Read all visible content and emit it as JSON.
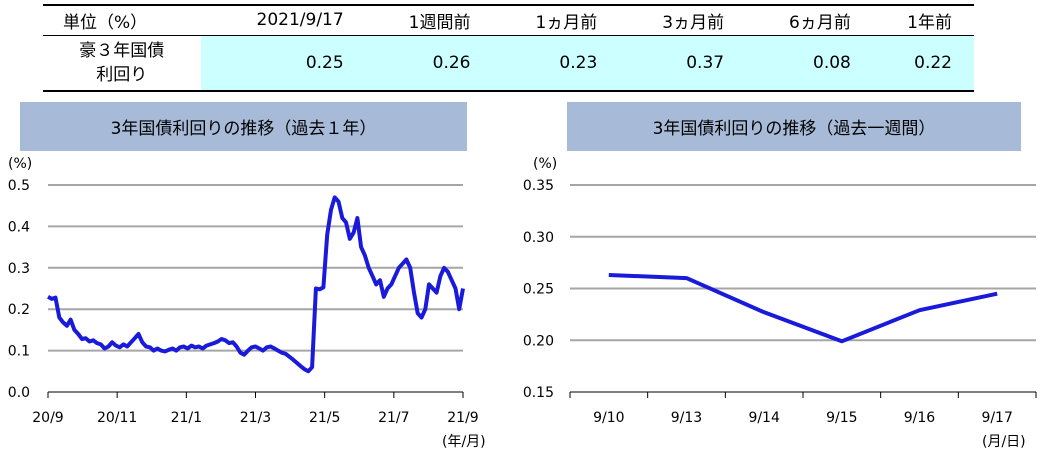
{
  "table": {
    "headers": [
      "単位（%）",
      "2021/9/17",
      "1週間前",
      "1ヵ月前",
      "3ヵ月前",
      "6ヵ月前",
      "1年前"
    ],
    "row_label_line1": "豪３年国債",
    "row_label_line2": "利回り",
    "values": [
      "0.25",
      "0.26",
      "0.23",
      "0.37",
      "0.08",
      "0.22"
    ]
  },
  "chart_data": [
    {
      "type": "line",
      "title": "3年国債利回りの推移（過去１年）",
      "unit_label": "(%)",
      "x_unit_label": "(年/月)",
      "ylim": [
        0,
        0.5
      ],
      "yticks": [
        "0.0",
        "0.1",
        "0.2",
        "0.3",
        "0.4",
        "0.5"
      ],
      "xticks": [
        "20/9",
        "20/11",
        "21/1",
        "21/3",
        "21/5",
        "21/7",
        "21/9"
      ],
      "grid": true,
      "series": [
        {
          "color": "#1a1adb",
          "values": [
            0.23,
            0.225,
            0.228,
            0.18,
            0.168,
            0.16,
            0.175,
            0.15,
            0.14,
            0.128,
            0.13,
            0.122,
            0.125,
            0.118,
            0.115,
            0.105,
            0.11,
            0.12,
            0.112,
            0.108,
            0.115,
            0.11,
            0.12,
            0.13,
            0.14,
            0.12,
            0.11,
            0.108,
            0.1,
            0.105,
            0.1,
            0.098,
            0.102,
            0.105,
            0.1,
            0.108,
            0.11,
            0.105,
            0.112,
            0.108,
            0.11,
            0.105,
            0.112,
            0.115,
            0.118,
            0.122,
            0.128,
            0.125,
            0.118,
            0.12,
            0.11,
            0.095,
            0.09,
            0.1,
            0.108,
            0.11,
            0.105,
            0.1,
            0.108,
            0.11,
            0.105,
            0.1,
            0.095,
            0.092,
            0.085,
            0.078,
            0.07,
            0.062,
            0.055,
            0.05,
            0.06,
            0.25,
            0.248,
            0.253,
            0.38,
            0.44,
            0.47,
            0.46,
            0.42,
            0.41,
            0.37,
            0.385,
            0.42,
            0.35,
            0.33,
            0.3,
            0.28,
            0.26,
            0.27,
            0.23,
            0.25,
            0.26,
            0.28,
            0.3,
            0.31,
            0.32,
            0.3,
            0.24,
            0.19,
            0.18,
            0.2,
            0.26,
            0.25,
            0.24,
            0.28,
            0.3,
            0.29,
            0.27,
            0.25,
            0.2,
            0.25
          ]
        }
      ]
    },
    {
      "type": "line",
      "title": "3年国債利回りの推移（過去一週間）",
      "unit_label": "(%)",
      "x_unit_label": "(月/日)",
      "ylim": [
        0.15,
        0.35
      ],
      "yticks": [
        "0.15",
        "0.20",
        "0.25",
        "0.30",
        "0.35"
      ],
      "categories": [
        "9/10",
        "9/13",
        "9/14",
        "9/15",
        "9/16",
        "9/17"
      ],
      "grid": true,
      "series": [
        {
          "color": "#1a1adb",
          "values": [
            0.263,
            0.26,
            0.227,
            0.199,
            0.229,
            0.245
          ]
        }
      ]
    }
  ]
}
